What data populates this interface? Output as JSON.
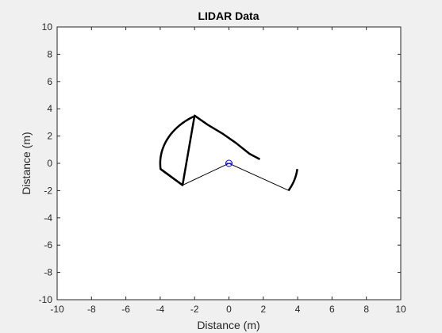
{
  "chart_data": {
    "type": "line",
    "title": "LIDAR Data",
    "xlabel": "Distance (m)",
    "ylabel": "Distance (m)",
    "xlim": [
      -10,
      10
    ],
    "ylim": [
      -10,
      10
    ],
    "xticks": [
      -10,
      -8,
      -6,
      -4,
      -2,
      0,
      2,
      4,
      6,
      8,
      10
    ],
    "yticks": [
      -10,
      -8,
      -6,
      -4,
      -2,
      0,
      2,
      4,
      6,
      8,
      10
    ],
    "grid": false,
    "sensor_position": [
      0,
      0
    ],
    "colors": {
      "points": "#000000",
      "sensor": "#0000ff",
      "axes": "#262626",
      "background": "#f0f0f0",
      "plot_area": "#ffffff"
    },
    "series": [
      {
        "kind": "scan-points",
        "x": [
          -4.0,
          -2.7,
          -2.0,
          -1.2,
          -0.4,
          0.4,
          1.2,
          1.8
        ],
        "y": [
          -0.4,
          -1.6,
          3.5,
          2.8,
          2.2,
          1.5,
          0.7,
          0.3
        ]
      },
      {
        "kind": "scan-arc",
        "center": [
          0,
          0
        ],
        "start_deg": 121,
        "end_deg": 186
      },
      {
        "kind": "scan-points",
        "x": [
          -4.0,
          -2.7
        ],
        "y": [
          -0.4,
          -1.6
        ]
      },
      {
        "kind": "scan-arc",
        "center": [
          0,
          0
        ],
        "start_deg": -30,
        "end_deg": -6
      },
      {
        "kind": "beam",
        "x": [
          -2.7,
          0,
          3.5
        ],
        "y": [
          -1.6,
          0,
          -2.0
        ]
      }
    ]
  }
}
